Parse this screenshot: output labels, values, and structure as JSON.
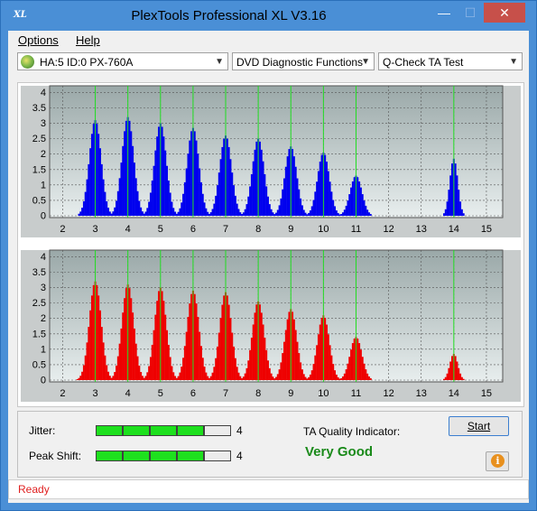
{
  "window": {
    "title": "PlexTools Professional XL V3.16",
    "icon": "xl-app-icon"
  },
  "caption_buttons": {
    "minimize": "—",
    "maximize": "☐",
    "close": "✕"
  },
  "menu": {
    "options": "Options",
    "help": "Help"
  },
  "toolbar": {
    "device": "HA:5 ID:0  PX-760A",
    "mode": "DVD Diagnostic Functions",
    "test": "Q-Check TA Test"
  },
  "colors": {
    "land_bars": "#0000ee",
    "pit_bars": "#ee0000",
    "markers": "#22dd22",
    "plot_bg": "#a8b4b4",
    "meter_on": "#1ee01e",
    "quality": "#1a8a1a",
    "status": "#e02020"
  },
  "chart_data": [
    {
      "type": "bar",
      "x_ticks": [
        "2",
        "3",
        "4",
        "5",
        "6",
        "7",
        "8",
        "9",
        "10",
        "11",
        "12",
        "13",
        "14",
        "15"
      ],
      "y_ticks": [
        "4",
        "3.5",
        "3",
        "2.5",
        "2",
        "1.5",
        "1",
        "0.5",
        "0"
      ],
      "ylim": [
        0,
        4.1
      ],
      "xlim": [
        1.6,
        15.5
      ],
      "markers": [
        3,
        4,
        5,
        6,
        7,
        8,
        9,
        10,
        11,
        14
      ],
      "peaks": [
        {
          "center": 3,
          "height": 3.1
        },
        {
          "center": 4,
          "height": 3.2
        },
        {
          "center": 5,
          "height": 3.0
        },
        {
          "center": 6,
          "height": 2.85
        },
        {
          "center": 7,
          "height": 2.6
        },
        {
          "center": 8,
          "height": 2.5
        },
        {
          "center": 9,
          "height": 2.25
        },
        {
          "center": 10,
          "height": 2.05
        },
        {
          "center": 11,
          "height": 1.3
        },
        {
          "center": 14,
          "height": 1.85
        }
      ]
    },
    {
      "type": "bar",
      "x_ticks": [
        "2",
        "3",
        "4",
        "5",
        "6",
        "7",
        "8",
        "9",
        "10",
        "11",
        "12",
        "13",
        "14",
        "15"
      ],
      "y_ticks": [
        "4",
        "3.5",
        "3",
        "2.5",
        "2",
        "1.5",
        "1",
        "0.5",
        "0"
      ],
      "ylim": [
        0,
        4.1
      ],
      "xlim": [
        1.6,
        15.5
      ],
      "markers": [
        3,
        4,
        5,
        6,
        7,
        8,
        9,
        10,
        11,
        14
      ],
      "peaks": [
        {
          "center": 3,
          "height": 3.2
        },
        {
          "center": 4,
          "height": 3.1
        },
        {
          "center": 5,
          "height": 3.0
        },
        {
          "center": 6,
          "height": 2.9
        },
        {
          "center": 7,
          "height": 2.85
        },
        {
          "center": 8,
          "height": 2.55
        },
        {
          "center": 9,
          "height": 2.3
        },
        {
          "center": 10,
          "height": 2.1
        },
        {
          "center": 11,
          "height": 1.4
        },
        {
          "center": 14,
          "height": 0.85
        }
      ]
    }
  ],
  "results": {
    "jitter_label": "Jitter:",
    "jitter_value": "4",
    "jitter_level": 4,
    "peak_label": "Peak Shift:",
    "peak_value": "4",
    "peak_level": 4,
    "meter_max": 5,
    "quality_label": "TA Quality Indicator:",
    "quality_value": "Very Good",
    "start": "Start"
  },
  "status": {
    "text": "Ready"
  }
}
